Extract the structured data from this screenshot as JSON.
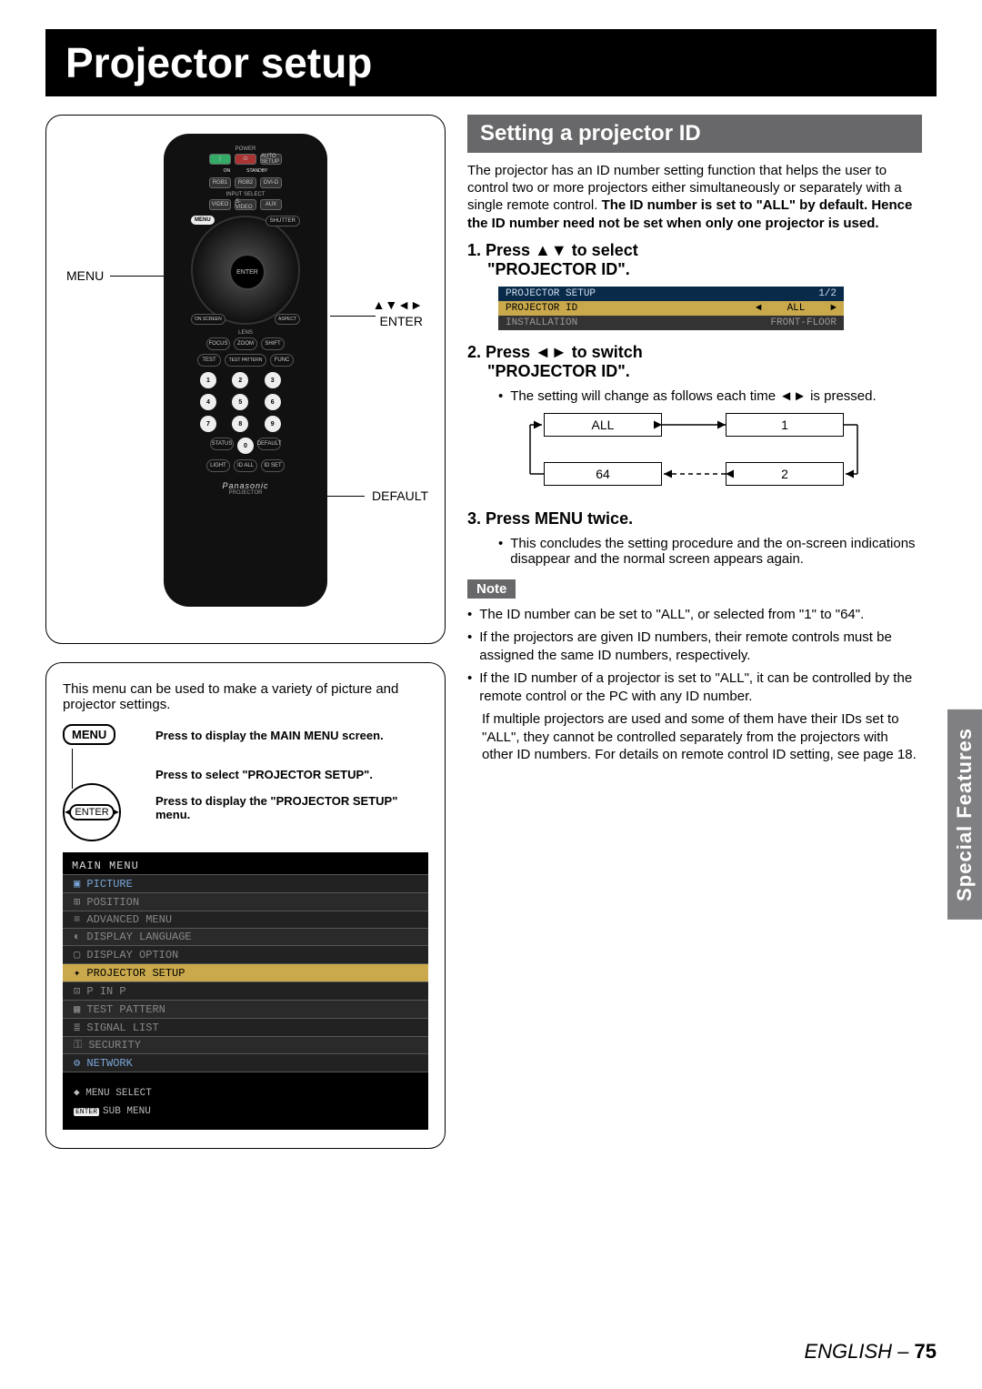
{
  "page_title": "Projector setup",
  "side_tab": "Special Features",
  "footer": {
    "lang": "ENGLISH",
    "sep": " – ",
    "page": "75"
  },
  "remote": {
    "power_label": "POWER",
    "on": "ON",
    "standby": "STANDBY",
    "auto_setup": "AUTO SETUP",
    "rgb1": "RGB1",
    "rgb2": "RGB2",
    "dvid": "DVI-D",
    "input_select": "INPUT SELECT",
    "video": "VIDEO",
    "svideo": "S-VIDEO",
    "aux": "AUX",
    "menu": "MENU",
    "shutter": "SHUTTER",
    "enter": "ENTER",
    "on_screen": "ON SCREEN",
    "aspect": "ASPECT",
    "lens": "LENS",
    "focus": "FOCUS",
    "zoom": "ZOOM",
    "shift": "SHIFT",
    "test": "TEST",
    "test_pattern": "TEST PATTERN",
    "func": "FUNC",
    "status": "STATUS",
    "default": "DEFAULT",
    "light": "LIGHT",
    "id_all": "ID ALL",
    "id_set": "ID SET",
    "brand": "Panasonic",
    "brand_sub": "PROJECTOR",
    "nums": [
      "1",
      "2",
      "3",
      "4",
      "5",
      "6",
      "7",
      "8",
      "9",
      "0"
    ]
  },
  "callouts": {
    "menu": "MENU",
    "arrows": "▲▼◄►",
    "enter": "ENTER",
    "default": "DEFAULT"
  },
  "menu_box": {
    "desc": "This menu can be used to make a variety of picture and projector settings.",
    "menu_label": "MENU",
    "enter_label": "ENTER",
    "action1": "Press to display the MAIN MENU screen.",
    "action2": "Press to select \"PROJECTOR SETUP\".",
    "action3": "Press to display the \"PROJECTOR SETUP\" menu.",
    "osd_title": "MAIN MENU",
    "osd_items": [
      {
        "icon": "▣",
        "label": "PICTURE",
        "cls": "blue"
      },
      {
        "icon": "⊞",
        "label": "POSITION",
        "cls": "alt"
      },
      {
        "icon": "≡",
        "label": "ADVANCED MENU",
        "cls": ""
      },
      {
        "icon": "◐",
        "label": "DISPLAY LANGUAGE",
        "cls": "alt"
      },
      {
        "icon": "▢",
        "label": "DISPLAY OPTION",
        "cls": ""
      },
      {
        "icon": "✦",
        "label": "PROJECTOR SETUP",
        "cls": "hl"
      },
      {
        "icon": "⊡",
        "label": "P IN P",
        "cls": ""
      },
      {
        "icon": "▦",
        "label": "TEST PATTERN",
        "cls": "alt"
      },
      {
        "icon": "≣",
        "label": "SIGNAL LIST",
        "cls": ""
      },
      {
        "icon": "⚿",
        "label": "SECURITY",
        "cls": "alt"
      },
      {
        "icon": "⚙",
        "label": "NETWORK",
        "cls": "blue"
      }
    ],
    "osd_footer1": "MENU SELECT",
    "osd_footer1_icon": "◆",
    "osd_footer2": "SUB MENU",
    "osd_footer2_chip": "ENTER"
  },
  "section_title": "Setting a projector ID",
  "intro": {
    "p1": "The projector has an ID number setting function that helps the user to control two or more projectors either simultaneously or separately with a single remote control. ",
    "bold": "The ID number is set to \"ALL\" by default. Hence the ID number need not be set when only one projector is used."
  },
  "step1": {
    "num": "1.  ",
    "line1": "Press ▲▼ to select",
    "line2": "\"PROJECTOR ID\".",
    "osd_header_left": "PROJECTOR SETUP",
    "osd_header_right": "1/2",
    "row1_left": "PROJECTOR ID",
    "row1_arrow_l": "◄",
    "row1_val": "ALL",
    "row1_arrow_r": "►",
    "row2_left": "INSTALLATION",
    "row2_right": "FRONT-FLOOR"
  },
  "step2": {
    "num": "2.  ",
    "line1": "Press ◄► to switch",
    "line2": "\"PROJECTOR ID\".",
    "bullet": "The setting will change as follows each time ◄► is pressed.",
    "c1": "ALL",
    "c2": "1",
    "c3": "64",
    "c4": "2"
  },
  "step3": {
    "num": "3.  ",
    "line1": "Press MENU twice.",
    "bullet": "This concludes the setting procedure and the on-screen indications disappear and the normal screen appears again."
  },
  "note_label": "Note",
  "notes": {
    "n1": "The ID number can be set to \"ALL\", or selected from \"1\" to \"64\".",
    "n2": "If the projectors are given ID numbers, their remote controls must be assigned the same ID numbers, respectively.",
    "n3": "If the ID number of a projector is set to \"ALL\", it can be controlled by the remote control or the PC with any ID number.",
    "n3b": "If multiple projectors are used and some of them have their IDs set to \"ALL\", they cannot be controlled separately from the projectors with other ID numbers. For details on remote control ID setting, see page 18."
  }
}
